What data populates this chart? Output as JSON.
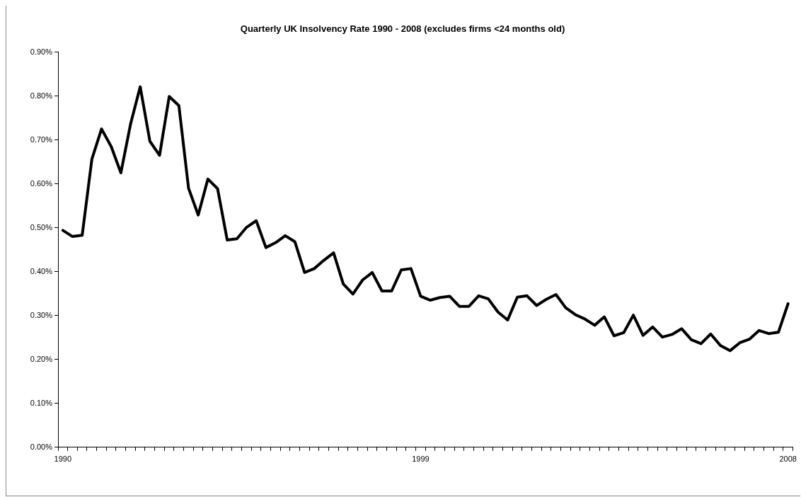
{
  "chart_data": {
    "type": "line",
    "title": "Quarterly UK Insolvency Rate 1990 - 2008 (excludes firms <24 months old)",
    "categories": [
      "1990",
      null,
      null,
      null,
      null,
      null,
      null,
      null,
      null,
      null,
      null,
      null,
      null,
      null,
      null,
      null,
      null,
      null,
      null,
      null,
      null,
      null,
      null,
      null,
      null,
      null,
      null,
      null,
      null,
      null,
      null,
      null,
      null,
      null,
      null,
      null,
      null,
      "1999",
      null,
      null,
      null,
      null,
      null,
      null,
      null,
      null,
      null,
      null,
      null,
      null,
      null,
      null,
      null,
      null,
      null,
      null,
      null,
      null,
      null,
      null,
      null,
      null,
      null,
      null,
      null,
      null,
      null,
      null,
      null,
      null,
      null,
      null,
      null,
      null,
      null,
      "2008"
    ],
    "series": [
      {
        "color": "#000000",
        "values": [
          0.494,
          0.48,
          0.483,
          0.656,
          0.725,
          0.685,
          0.625,
          0.736,
          0.821,
          0.697,
          0.665,
          0.799,
          0.778,
          0.59,
          0.529,
          0.611,
          0.589,
          0.472,
          0.475,
          0.501,
          0.516,
          0.455,
          0.466,
          0.482,
          0.468,
          0.398,
          0.407,
          0.426,
          0.443,
          0.372,
          0.349,
          0.381,
          0.398,
          0.356,
          0.356,
          0.404,
          0.407,
          0.344,
          0.335,
          0.341,
          0.344,
          0.321,
          0.321,
          0.345,
          0.338,
          0.308,
          0.29,
          0.342,
          0.345,
          0.323,
          0.337,
          0.348,
          0.318,
          0.302,
          0.292,
          0.278,
          0.297,
          0.254,
          0.261,
          0.301,
          0.255,
          0.274,
          0.251,
          0.257,
          0.27,
          0.245,
          0.236,
          0.258,
          0.232,
          0.22,
          0.238,
          0.246,
          0.266,
          0.259,
          0.262,
          0.327
        ]
      }
    ],
    "ylim": [
      0,
      0.9
    ],
    "yticks": [
      {
        "value": 0,
        "label": "0.00%"
      },
      {
        "value": 0.1,
        "label": "0.10%"
      },
      {
        "value": 0.2,
        "label": "0.20%"
      },
      {
        "value": 0.3,
        "label": "0.30%"
      },
      {
        "value": 0.4,
        "label": "0.40%"
      },
      {
        "value": 0.5,
        "label": "0.50%"
      },
      {
        "value": 0.6,
        "label": "0.60%"
      },
      {
        "value": 0.7,
        "label": "0.70%"
      },
      {
        "value": 0.8,
        "label": "0.80%"
      },
      {
        "value": 0.9,
        "label": "0.90%"
      }
    ],
    "grid": false,
    "legend": false,
    "marker": "none",
    "line_style": "solid"
  }
}
